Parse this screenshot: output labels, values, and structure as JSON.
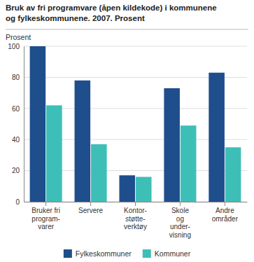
{
  "chart_data": {
    "type": "bar",
    "title": "Bruk av fri programvare (åpen kildekode) i kommunene\nog fylkeskommunene. 2007. Prosent",
    "ylabel": "Prosent",
    "categories": [
      "Bruker fri\nprogram-\nvarer",
      "Servere",
      "Kontor-\nstøtte-\nverktøy",
      "Skole\nog\nunder-\nvisning",
      "Andre\nområder"
    ],
    "series": [
      {
        "name": "Fylkeskommuner",
        "color": "#1F4E8C",
        "values": [
          100,
          78,
          17,
          73,
          83
        ]
      },
      {
        "name": "Kommuner",
        "color": "#3DBFB8",
        "values": [
          62,
          37,
          16,
          49,
          35
        ]
      }
    ],
    "ylim": [
      0,
      100
    ],
    "yticks": [
      0,
      20,
      40,
      60,
      80,
      100
    ],
    "grid": true,
    "legend": "bottom"
  }
}
